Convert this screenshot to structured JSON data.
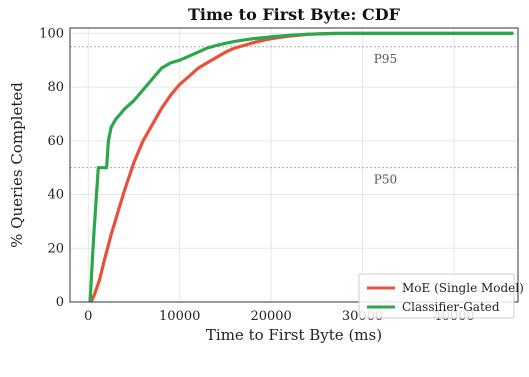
{
  "chart_data": {
    "type": "line",
    "title": "Time to First Byte: CDF",
    "xlabel": "Time to First Byte (ms)",
    "ylabel": "% Queries Completed",
    "xlim": [
      -2000,
      47000
    ],
    "ylim": [
      0,
      102
    ],
    "x_ticks": [
      0,
      10000,
      20000,
      30000,
      40000
    ],
    "y_ticks": [
      0,
      20,
      40,
      60,
      80,
      100
    ],
    "grid": true,
    "legend_position": "bottom-right",
    "reference_lines": [
      {
        "label": "P95",
        "y": 95,
        "color": "#aaaaaa"
      },
      {
        "label": "P50",
        "y": 50,
        "color": "#aaaaaa"
      }
    ],
    "series": [
      {
        "name": "MoE (Single Model)",
        "color": "#e8503a",
        "points": [
          [
            300,
            0
          ],
          [
            700,
            3
          ],
          [
            1200,
            8
          ],
          [
            1800,
            16
          ],
          [
            2500,
            25
          ],
          [
            3200,
            33
          ],
          [
            4000,
            42
          ],
          [
            5000,
            52
          ],
          [
            6000,
            60
          ],
          [
            7000,
            66
          ],
          [
            8000,
            72
          ],
          [
            9000,
            77
          ],
          [
            10000,
            81
          ],
          [
            11000,
            84
          ],
          [
            12000,
            87
          ],
          [
            13000,
            89
          ],
          [
            14000,
            91
          ],
          [
            15000,
            93
          ],
          [
            16000,
            94.5
          ],
          [
            17000,
            95.5
          ],
          [
            18000,
            96.5
          ],
          [
            19000,
            97.3
          ],
          [
            20000,
            98
          ],
          [
            22000,
            99
          ],
          [
            24000,
            99.6
          ],
          [
            26000,
            99.9
          ],
          [
            29000,
            100
          ],
          [
            46500,
            100
          ]
        ]
      },
      {
        "name": "Classifier-Gated",
        "color": "#2aa84a",
        "points": [
          [
            200,
            0
          ],
          [
            350,
            10
          ],
          [
            600,
            25
          ],
          [
            900,
            40
          ],
          [
            1100,
            50
          ],
          [
            2000,
            50
          ],
          [
            2200,
            60
          ],
          [
            2500,
            65
          ],
          [
            3000,
            68
          ],
          [
            3500,
            70
          ],
          [
            4000,
            72
          ],
          [
            5000,
            75
          ],
          [
            6000,
            79
          ],
          [
            7000,
            83
          ],
          [
            8000,
            87
          ],
          [
            9000,
            89
          ],
          [
            10000,
            90
          ],
          [
            11000,
            91.5
          ],
          [
            12000,
            93
          ],
          [
            13000,
            94.5
          ],
          [
            14000,
            95.5
          ],
          [
            15000,
            96.3
          ],
          [
            16000,
            97
          ],
          [
            18000,
            98
          ],
          [
            20000,
            98.7
          ],
          [
            22000,
            99.3
          ],
          [
            24000,
            99.7
          ],
          [
            27000,
            100
          ],
          [
            46500,
            100
          ]
        ]
      }
    ]
  }
}
